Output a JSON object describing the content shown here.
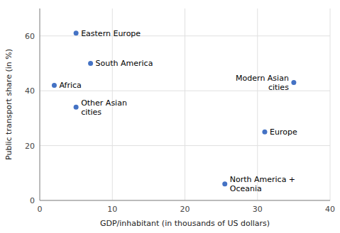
{
  "chart_data": {
    "type": "scatter",
    "x": [
      5.0,
      7.0,
      2.0,
      5.0,
      35.0,
      31.0,
      25.5
    ],
    "values": [
      61,
      50,
      42,
      34,
      43,
      25,
      6
    ],
    "annotations": [
      "Eastern Europe",
      "South America",
      "Africa",
      "Other Asian\ncities",
      "Modern Asian\ncities",
      "Europe",
      "North America +\nOceania"
    ],
    "color": "#4472C4",
    "xlabel": "GDP/inhabitant (in thousands of US dollars)",
    "ylabel": "Public transport share (in %)",
    "xlim": [
      0,
      40
    ],
    "ylim": [
      0,
      70
    ],
    "xticks": [
      0,
      10,
      20,
      30,
      40
    ],
    "yticks": [
      0,
      20,
      40,
      60
    ],
    "grid": true
  }
}
